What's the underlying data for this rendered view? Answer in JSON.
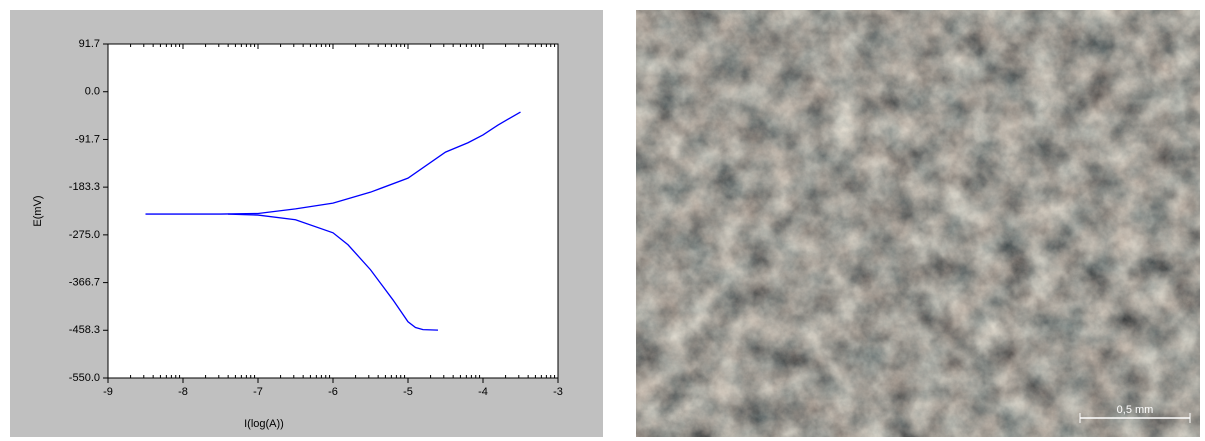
{
  "chart_data": {
    "type": "line",
    "xlabel": "I(log(A))",
    "ylabel": "E(mV)",
    "xlim": [
      -9,
      -3
    ],
    "xticks": [
      -9,
      -8,
      -7,
      -6,
      -5,
      -4,
      -3
    ],
    "ylim": [
      -550,
      91.7
    ],
    "yticks": [
      91.7,
      {
        "value": 0,
        "label": "0.0"
      },
      -91.7,
      -183.3,
      {
        "value": -275,
        "label": "-275.0"
      },
      -366.7,
      -458.3,
      {
        "value": -550,
        "label": "-550.0"
      }
    ],
    "grid": false,
    "series": [
      {
        "color": "#0000ff",
        "x": [
          -8.5,
          -8,
          -7.5,
          -7,
          -6.5,
          -6,
          -5.5,
          -5,
          -4.5,
          -4.2,
          -4,
          -3.8,
          -3.5
        ],
        "values": [
          -235,
          -235,
          -235,
          -234,
          -225,
          -214,
          -193,
          -166,
          -116,
          -98,
          -83,
          -64,
          -39
        ]
      },
      {
        "color": "#0000ff",
        "x": [
          -7.4,
          -7,
          -6.5,
          -6,
          -5.8,
          -5.5,
          -5.2,
          -5,
          -4.9,
          -4.8,
          -4.6
        ],
        "values": [
          -235,
          -237,
          -246,
          -271,
          -294,
          -342,
          -400,
          -442,
          -453,
          -457,
          -458
        ]
      }
    ]
  },
  "micrograph": {
    "scale_bar": "0,5 mm"
  }
}
